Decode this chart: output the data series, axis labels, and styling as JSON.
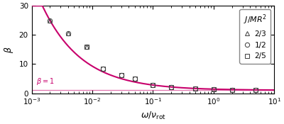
{
  "xlabel": "$\\omega/\\nu_{\\rm rot}$",
  "ylabel": "$\\beta$",
  "xlim": [
    0.001,
    10
  ],
  "ylim": [
    0,
    30
  ],
  "curve_color": "#c8006c",
  "legend_title": "$J/MR^2$",
  "curve_A": 0.028,
  "curve_n": 1.0,
  "shared_x": [
    0.002,
    0.004,
    0.008,
    0.015,
    0.03,
    0.05,
    0.1,
    0.2,
    0.5,
    1.0,
    2.0,
    5.0
  ],
  "shared_y": [
    25.0,
    20.5,
    16.0,
    8.5,
    6.3,
    5.1,
    2.8,
    2.05,
    1.55,
    1.3,
    1.15,
    1.05
  ],
  "beta1_x": 0.0012,
  "beta1_y": 2.2,
  "beta1_text": "$\\beta = 1$",
  "yticks": [
    0,
    10,
    20,
    30
  ],
  "tick_label_fontsize": 7.5,
  "axis_label_fontsize": 9,
  "legend_fontsize": 7.5,
  "background_color": "#ffffff"
}
